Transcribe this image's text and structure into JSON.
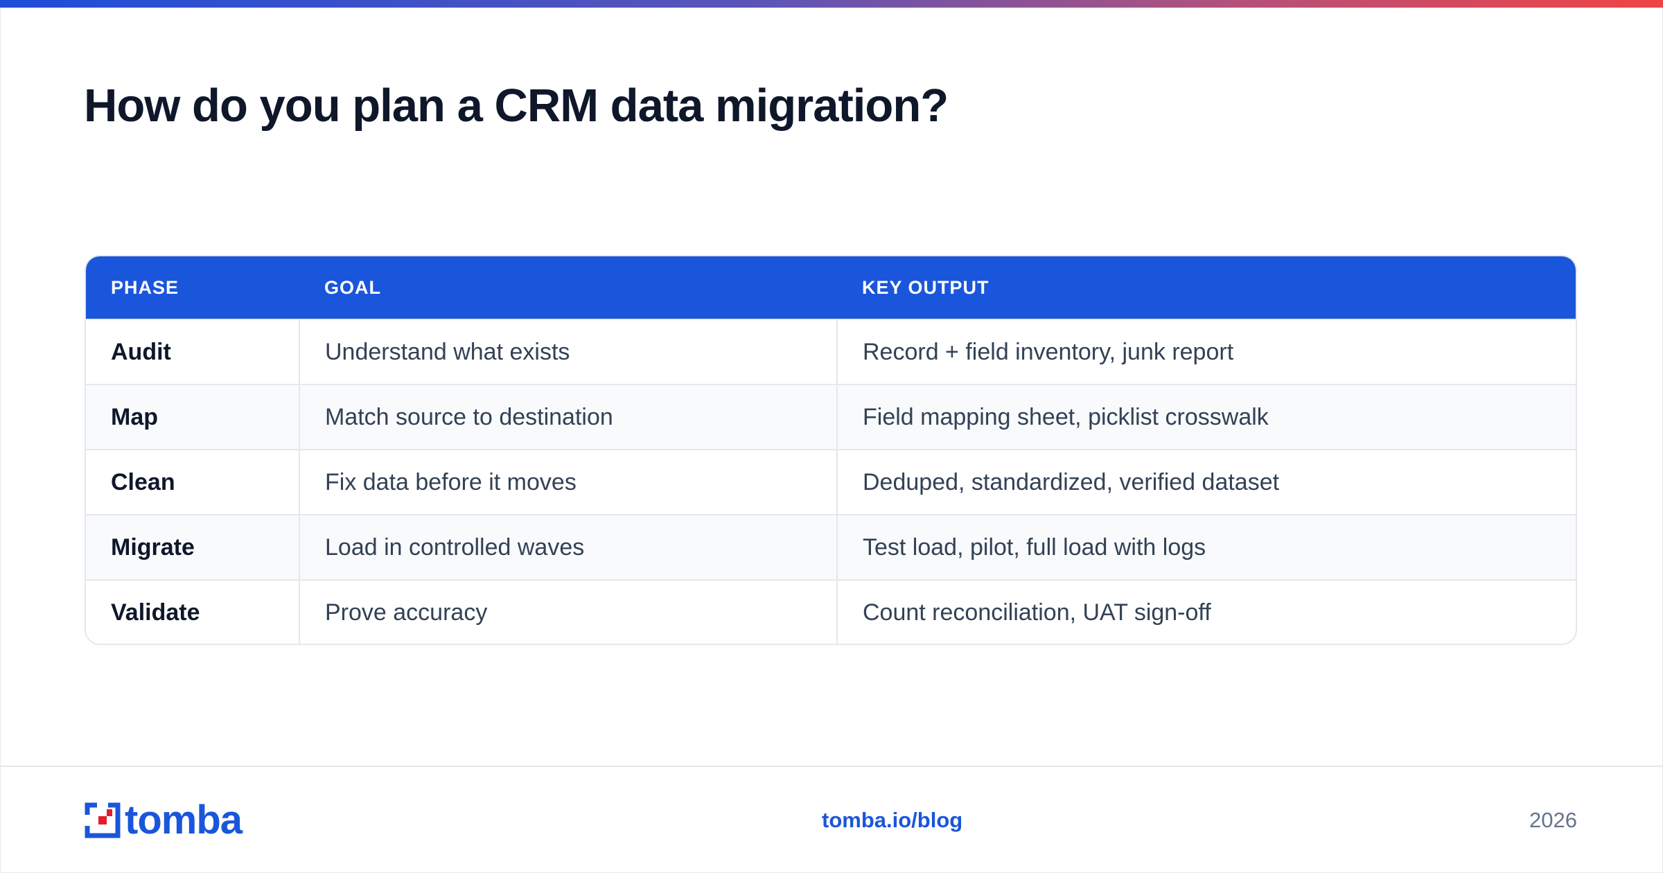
{
  "title": "How do you plan a CRM data migration?",
  "table": {
    "headers": [
      "PHASE",
      "GOAL",
      "KEY OUTPUT"
    ],
    "rows": [
      {
        "phase": "Audit",
        "goal": "Understand what exists",
        "output": "Record + field inventory, junk report"
      },
      {
        "phase": "Map",
        "goal": "Match source to destination",
        "output": "Field mapping sheet, picklist crosswalk"
      },
      {
        "phase": "Clean",
        "goal": "Fix data before it moves",
        "output": "Deduped, standardized, verified dataset"
      },
      {
        "phase": "Migrate",
        "goal": "Load in controlled waves",
        "output": "Test load, pilot, full load with logs"
      },
      {
        "phase": "Validate",
        "goal": "Prove accuracy",
        "output": "Count reconciliation, UAT sign-off"
      }
    ]
  },
  "footer": {
    "logo_text": "tomba",
    "link": "tomba.io/blog",
    "year": "2026"
  },
  "colors": {
    "accent": "#1a56db",
    "gradient_end": "#ef4444",
    "logo_red": "#e11d2e"
  },
  "icons": {
    "logo": "tomba-logo-icon"
  }
}
